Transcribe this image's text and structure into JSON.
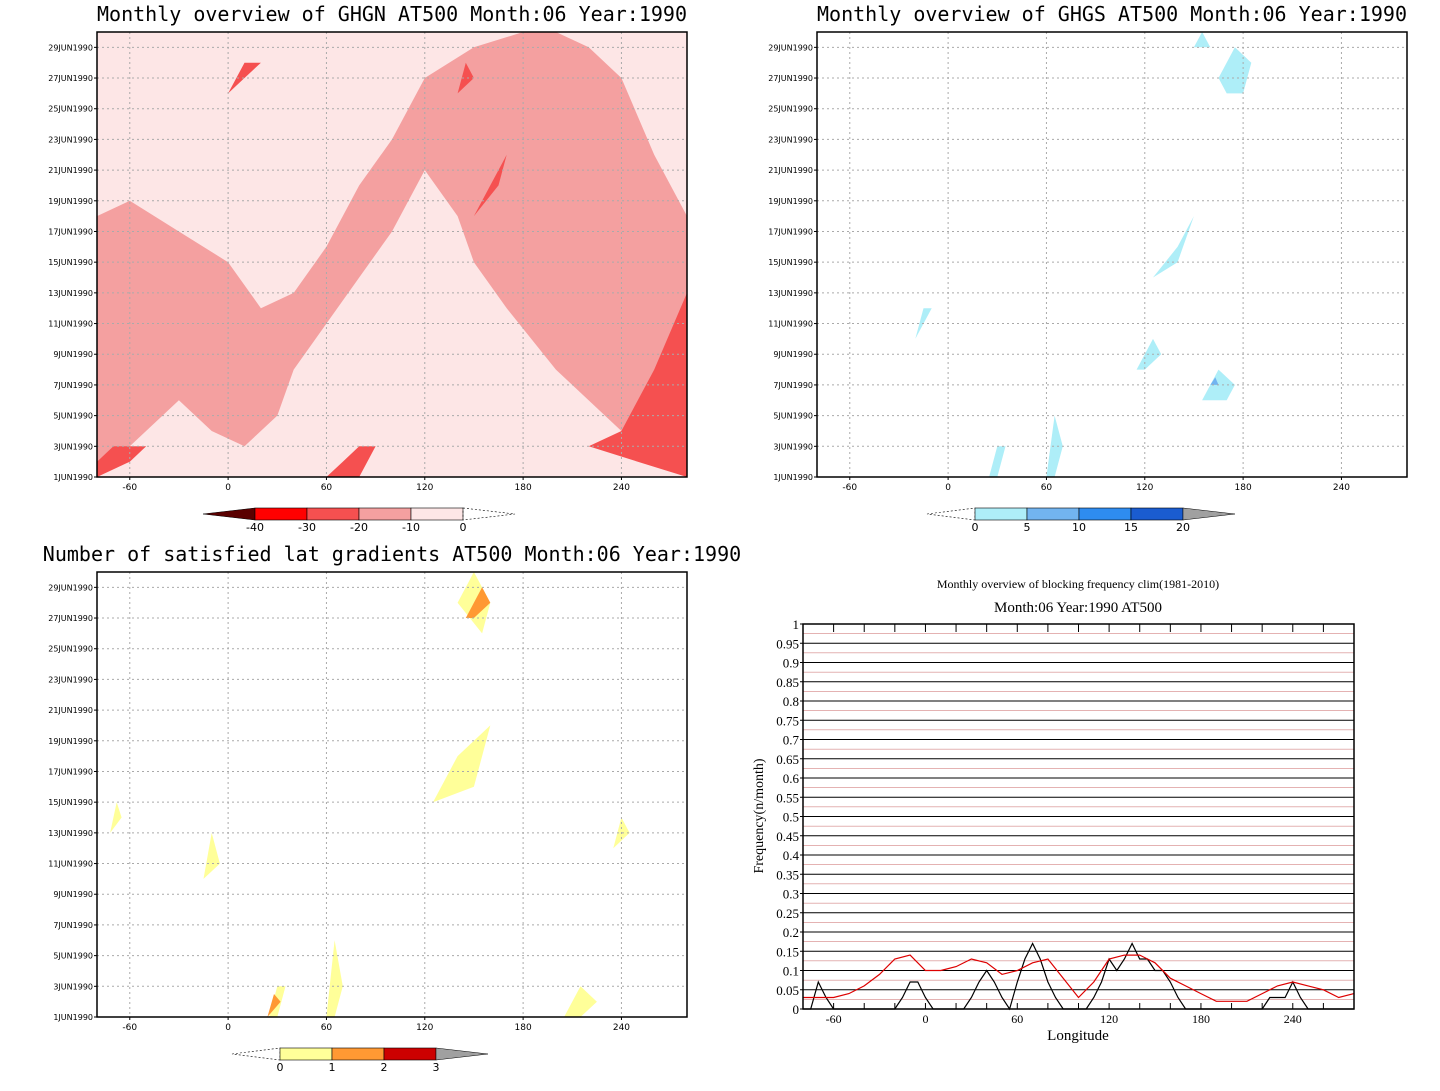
{
  "chart_data": [
    {
      "type": "heatmap",
      "title": "Monthly overview of GHGN AT500 Month:06 Year:1990",
      "x_ticks": [
        "-60",
        "0",
        "60",
        "120",
        "180",
        "240"
      ],
      "y_ticks": [
        "29JUN1990",
        "27JUN1990",
        "25JUN1990",
        "23JUN1990",
        "21JUN1990",
        "19JUN1990",
        "17JUN1990",
        "15JUN1990",
        "13JUN1990",
        "11JUN1990",
        "9JUN1990",
        "7JUN1990",
        "5JUN1990",
        "3JUN1990",
        "1JUN1990"
      ],
      "xlim": [
        -80,
        280
      ],
      "ylim": [
        1,
        30
      ],
      "colorbar": {
        "labels": [
          "-40",
          "-30",
          "-20",
          "-10",
          "0"
        ],
        "colors": [
          "#5a0000",
          "#ff0000",
          "#f55050",
          "#f4a0a0",
          "#fde6e6"
        ]
      },
      "regions": [
        {
          "level": "-10",
          "color": "#f4a0a0",
          "x": [
            -80,
            -60,
            -30,
            0,
            20,
            40,
            60,
            80,
            100,
            120,
            150,
            180,
            200,
            220,
            240,
            260,
            280,
            280,
            240,
            200,
            170,
            150,
            140,
            120,
            100,
            80,
            60,
            40,
            30,
            10,
            -10,
            -30,
            -60,
            -80
          ],
          "y": [
            18,
            19,
            17,
            15,
            12,
            13,
            16,
            20,
            23,
            27,
            29,
            30,
            30,
            29,
            27,
            22,
            18,
            1,
            4,
            8,
            12,
            15,
            18,
            21,
            17,
            14,
            11,
            8,
            5,
            3,
            4,
            6,
            3,
            2
          ]
        },
        {
          "level": "-20",
          "color": "#f55050",
          "x": [
            60,
            70,
            80,
            90,
            80,
            70,
            60
          ],
          "y": [
            1,
            2,
            3,
            3,
            1,
            1,
            1
          ]
        },
        {
          "level": "-20",
          "color": "#f55050",
          "x": [
            220,
            240,
            260,
            280,
            280,
            250,
            220
          ],
          "y": [
            3,
            4,
            8,
            13,
            1,
            2,
            3
          ]
        },
        {
          "level": "-20",
          "color": "#f55050",
          "x": [
            -80,
            -60,
            -50,
            -70,
            -80
          ],
          "y": [
            1,
            2,
            3,
            3,
            2
          ]
        },
        {
          "level": "-20",
          "color": "#f55050",
          "x": [
            150,
            160,
            170,
            165,
            150
          ],
          "y": [
            18,
            20,
            22,
            20,
            18
          ]
        },
        {
          "level": "-20",
          "color": "#f55050",
          "x": [
            0,
            10,
            20,
            10,
            0
          ],
          "y": [
            26,
            27,
            28,
            28,
            26
          ]
        },
        {
          "level": "-20",
          "color": "#f55050",
          "x": [
            140,
            150,
            145,
            140
          ],
          "y": [
            26,
            27,
            28,
            26
          ]
        }
      ]
    },
    {
      "type": "heatmap",
      "title": "Monthly overview of GHGS AT500 Month:06 Year:1990",
      "x_ticks": [
        "-60",
        "0",
        "60",
        "120",
        "180",
        "240"
      ],
      "y_ticks": [
        "29JUN1990",
        "27JUN1990",
        "25JUN1990",
        "23JUN1990",
        "21JUN1990",
        "19JUN1990",
        "17JUN1990",
        "15JUN1990",
        "13JUN1990",
        "11JUN1990",
        "9JUN1990",
        "7JUN1990",
        "5JUN1990",
        "3JUN1990",
        "1JUN1990"
      ],
      "xlim": [
        -80,
        280
      ],
      "ylim": [
        1,
        30
      ],
      "colorbar": {
        "labels": [
          "0",
          "5",
          "10",
          "15",
          "20"
        ],
        "colors": [
          "#aeeef8",
          "#72b4f0",
          "#2e8cf0",
          "#1a5cd0",
          "#a0a0a0"
        ]
      },
      "regions": [
        {
          "level": "0",
          "color": "#aeeef8",
          "x": [
            165,
            175,
            185,
            180,
            170,
            165
          ],
          "y": [
            27,
            29,
            28,
            26,
            26,
            27
          ]
        },
        {
          "level": "0",
          "color": "#aeeef8",
          "x": [
            150,
            155,
            160,
            150
          ],
          "y": [
            29,
            30,
            29,
            29
          ]
        },
        {
          "level": "0",
          "color": "#aeeef8",
          "x": [
            60,
            65,
            70,
            65,
            60
          ],
          "y": [
            1,
            5,
            3,
            1,
            1
          ]
        },
        {
          "level": "0",
          "color": "#aeeef8",
          "x": [
            25,
            30,
            35,
            30,
            25
          ],
          "y": [
            1,
            3,
            3,
            1,
            1
          ]
        },
        {
          "level": "0",
          "color": "#aeeef8",
          "x": [
            155,
            165,
            175,
            170,
            155
          ],
          "y": [
            6,
            8,
            7,
            6,
            6
          ]
        },
        {
          "level": "0",
          "color": "#aeeef8",
          "x": [
            115,
            125,
            130,
            120,
            115
          ],
          "y": [
            8,
            10,
            9,
            8,
            8
          ]
        },
        {
          "level": "0",
          "color": "#aeeef8",
          "x": [
            125,
            140,
            150,
            140,
            125
          ],
          "y": [
            14,
            16,
            18,
            15,
            14
          ]
        },
        {
          "level": "0",
          "color": "#aeeef8",
          "x": [
            -20,
            -15,
            -10,
            -20
          ],
          "y": [
            10,
            12,
            12,
            10
          ]
        },
        {
          "level": "5",
          "color": "#72b4f0",
          "x": [
            160,
            165,
            163,
            160
          ],
          "y": [
            7,
            7,
            7.5,
            7
          ]
        }
      ]
    },
    {
      "type": "heatmap",
      "title": "Number of satisfied lat gradients AT500 Month:06 Year:1990",
      "x_ticks": [
        "-60",
        "0",
        "60",
        "120",
        "180",
        "240"
      ],
      "y_ticks": [
        "29JUN1990",
        "27JUN1990",
        "25JUN1990",
        "23JUN1990",
        "21JUN1990",
        "19JUN1990",
        "17JUN1990",
        "15JUN1990",
        "13JUN1990",
        "11JUN1990",
        "9JUN1990",
        "7JUN1990",
        "5JUN1990",
        "3JUN1990",
        "1JUN1990"
      ],
      "xlim": [
        -80,
        280
      ],
      "ylim": [
        1,
        30
      ],
      "colorbar": {
        "labels": [
          "0",
          "1",
          "2",
          "3"
        ],
        "colors": [
          "#ffff99",
          "#ff9933",
          "#cc0000",
          "#a0a0a0"
        ]
      },
      "regions": [
        {
          "level": "0",
          "color": "#ffff99",
          "x": [
            140,
            150,
            160,
            155,
            140
          ],
          "y": [
            28,
            30,
            28,
            26,
            28
          ]
        },
        {
          "level": "0",
          "color": "#ffff99",
          "x": [
            125,
            140,
            160,
            165,
            150,
            125
          ],
          "y": [
            15,
            18,
            20,
            22,
            16,
            15
          ]
        },
        {
          "level": "0",
          "color": "#ffff99",
          "x": [
            60,
            65,
            70,
            65,
            60
          ],
          "y": [
            1,
            6,
            3,
            1,
            1
          ]
        },
        {
          "level": "0",
          "color": "#ffff99",
          "x": [
            25,
            30,
            35,
            30,
            25
          ],
          "y": [
            1,
            3,
            3,
            1,
            1
          ]
        },
        {
          "level": "0",
          "color": "#ffff99",
          "x": [
            -15,
            -10,
            -5,
            -15
          ],
          "y": [
            10,
            13,
            11,
            10
          ]
        },
        {
          "level": "0",
          "color": "#ffff99",
          "x": [
            205,
            215,
            225,
            215,
            205
          ],
          "y": [
            1,
            3,
            2,
            1,
            1
          ]
        },
        {
          "level": "0",
          "color": "#ffff99",
          "x": [
            -72,
            -68,
            -65,
            -72
          ],
          "y": [
            13,
            15,
            14,
            13
          ]
        },
        {
          "level": "0",
          "color": "#ffff99",
          "x": [
            235,
            240,
            245,
            235
          ],
          "y": [
            12,
            14,
            13,
            12
          ]
        },
        {
          "level": "1",
          "color": "#ff9933",
          "x": [
            145,
            155,
            160,
            150,
            145
          ],
          "y": [
            27,
            29,
            28,
            27,
            27
          ]
        },
        {
          "level": "1",
          "color": "#ff9933",
          "x": [
            24,
            28,
            32,
            24
          ],
          "y": [
            1,
            2.5,
            2,
            1
          ]
        }
      ]
    },
    {
      "type": "line",
      "title": "Monthly overview of blocking frequency clim(1981-2010)",
      "subtitle": "Month:06 Year:1990  AT500",
      "xlabel": "Longitude",
      "ylabel": "Frequency(n/month)",
      "x_ticks": [
        "-60",
        "0",
        "60",
        "120",
        "180",
        "240"
      ],
      "y_ticks": [
        "0",
        "0.05",
        "0.1",
        "0.15",
        "0.2",
        "0.25",
        "0.3",
        "0.35",
        "0.4",
        "0.45",
        "0.5",
        "0.55",
        "0.6",
        "0.65",
        "0.7",
        "0.75",
        "0.8",
        "0.85",
        "0.9",
        "0.95",
        "1"
      ],
      "xlim": [
        -80,
        280
      ],
      "ylim": [
        0,
        1
      ],
      "series": [
        {
          "color": "#000000",
          "x": [
            -80,
            -75,
            -70,
            -65,
            -60,
            -55,
            -50,
            -45,
            -40,
            -35,
            -30,
            -25,
            -20,
            -15,
            -10,
            -5,
            0,
            5,
            10,
            15,
            20,
            25,
            30,
            35,
            40,
            45,
            50,
            55,
            60,
            65,
            70,
            75,
            80,
            85,
            90,
            95,
            100,
            105,
            110,
            115,
            120,
            125,
            130,
            135,
            140,
            145,
            150,
            155,
            160,
            165,
            170,
            175,
            180,
            185,
            190,
            195,
            200,
            205,
            210,
            215,
            220,
            225,
            230,
            235,
            240,
            245,
            250,
            255,
            260,
            265,
            270,
            275,
            280
          ],
          "y": [
            0,
            0,
            0.07,
            0.03,
            0,
            0,
            0,
            0,
            0,
            0,
            0,
            0,
            0,
            0.03,
            0.07,
            0.07,
            0.03,
            0,
            0,
            0,
            0,
            0,
            0.03,
            0.07,
            0.1,
            0.07,
            0.03,
            0,
            0.07,
            0.13,
            0.17,
            0.13,
            0.07,
            0.03,
            0,
            0,
            0,
            0,
            0.03,
            0.07,
            0.13,
            0.1,
            0.13,
            0.17,
            0.13,
            0.13,
            0.1,
            0.1,
            0.07,
            0.03,
            0,
            0,
            0,
            0,
            0,
            0,
            0,
            0,
            0,
            0,
            0,
            0.03,
            0.03,
            0.03,
            0.07,
            0.03,
            0,
            0,
            0,
            0,
            0,
            0,
            0
          ]
        },
        {
          "color": "#dd0000",
          "x": [
            -80,
            -70,
            -60,
            -50,
            -40,
            -30,
            -20,
            -10,
            0,
            10,
            20,
            30,
            40,
            50,
            60,
            70,
            80,
            90,
            100,
            110,
            120,
            130,
            140,
            150,
            160,
            170,
            180,
            190,
            200,
            210,
            220,
            230,
            240,
            250,
            260,
            270,
            280
          ],
          "y": [
            0.03,
            0.03,
            0.03,
            0.04,
            0.06,
            0.09,
            0.13,
            0.14,
            0.1,
            0.1,
            0.11,
            0.13,
            0.12,
            0.09,
            0.1,
            0.12,
            0.13,
            0.08,
            0.03,
            0.07,
            0.13,
            0.14,
            0.14,
            0.12,
            0.08,
            0.06,
            0.04,
            0.02,
            0.02,
            0.02,
            0.04,
            0.06,
            0.07,
            0.06,
            0.05,
            0.03,
            0.04
          ]
        }
      ]
    }
  ]
}
